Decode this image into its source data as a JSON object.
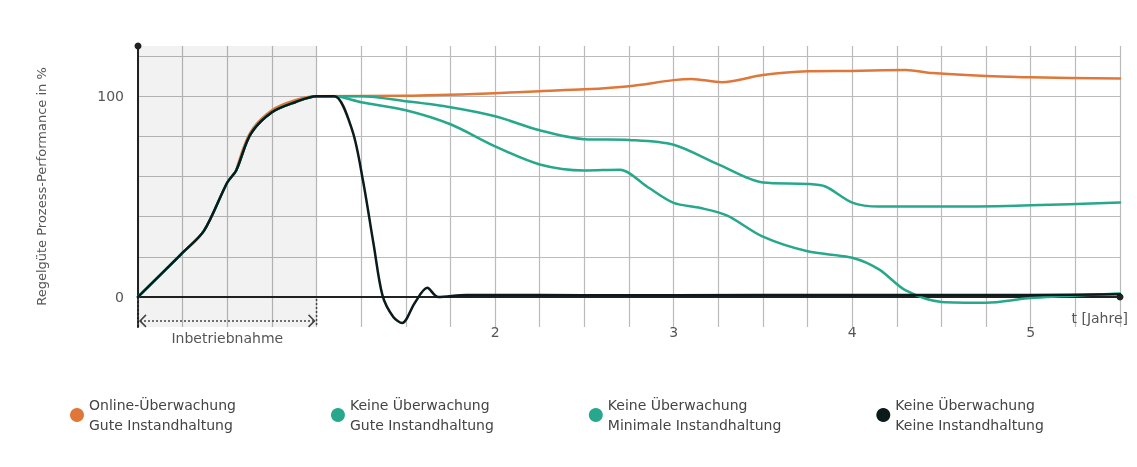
{
  "chart_data": {
    "type": "line",
    "xlabel": "t [Jahre]",
    "ylabel": "Regelgüte Prozess-Performance in %",
    "xlim": [
      0,
      5.5
    ],
    "ylim": [
      -15,
      125
    ],
    "xticks": [
      {
        "value": 0,
        "label": null
      },
      {
        "value": 0.25,
        "label": null
      },
      {
        "value": 0.5,
        "label": null
      },
      {
        "value": 0.75,
        "label": null
      },
      {
        "value": 1,
        "label": null
      },
      {
        "value": 1.25,
        "label": null
      },
      {
        "value": 1.5,
        "label": null
      },
      {
        "value": 1.75,
        "label": null
      },
      2,
      {
        "value": 2.25,
        "label": null
      },
      {
        "value": 2.5,
        "label": null
      },
      {
        "value": 2.75,
        "label": null
      },
      3,
      {
        "value": 3.25,
        "label": null
      },
      {
        "value": 3.5,
        "label": null
      },
      {
        "value": 3.75,
        "label": null
      },
      4,
      {
        "value": 4.25,
        "label": null
      },
      {
        "value": 4.5,
        "label": null
      },
      {
        "value": 4.75,
        "label": null
      },
      5,
      {
        "value": 5.25,
        "label": null
      },
      {
        "value": 5.5,
        "label": null
      }
    ],
    "yticks": [
      0,
      {
        "value": 20,
        "label": null
      },
      {
        "value": 40,
        "label": null
      },
      {
        "value": 60,
        "label": null
      },
      {
        "value": 80,
        "label": null
      },
      100,
      {
        "value": 120,
        "label": null
      }
    ],
    "grid": true,
    "legend": "bottom",
    "marker": "none",
    "line_style": "solid",
    "bands": [
      {
        "axis": "x",
        "from": 0,
        "to": 1,
        "label": "Inbetriebnahme"
      }
    ],
    "series": [
      {
        "name": "Online-Überwachung\nGute Instandhaltung",
        "color": "#e0773a",
        "x": [
          0.55,
          0.63,
          0.75,
          0.88,
          1,
          1.5,
          2,
          2.25,
          2.5,
          2.75,
          3,
          3.1,
          3.27,
          3.5,
          3.75,
          4,
          4.3,
          4.45,
          4.75,
          5,
          5.5
        ],
        "values": [
          63,
          82,
          93,
          98,
          100,
          100.2,
          101.5,
          102.5,
          103.4,
          105,
          108,
          108.6,
          107,
          110.5,
          112.4,
          112.6,
          113,
          111.5,
          110,
          109.4,
          108.8
        ]
      },
      {
        "name": "Keine Überwachung\nGute Instandhaltung",
        "color": "#27a88c",
        "x": [
          0,
          0.25,
          0.37,
          0.5,
          0.55,
          0.63,
          0.75,
          0.88,
          1,
          1.25,
          1.5,
          1.75,
          2,
          2.25,
          2.5,
          2.75,
          3,
          3.25,
          3.5,
          3.75,
          3.85,
          4,
          4.15,
          4.5,
          5,
          5.5
        ],
        "values": [
          0,
          22,
          33,
          57,
          63,
          81,
          92,
          97,
          100,
          100,
          97.5,
          94.5,
          90,
          83,
          78.6,
          78.2,
          75.8,
          66,
          57,
          56.3,
          55,
          47,
          45,
          45,
          45.6,
          47
        ]
      },
      {
        "name": "Keine Überwachung\nMinimale Instandhaltung",
        "color": "#27a88c",
        "x": [
          0,
          0.25,
          0.37,
          0.5,
          0.55,
          0.63,
          0.75,
          0.88,
          1,
          1.1,
          1.25,
          1.5,
          1.75,
          2,
          2.25,
          2.5,
          2.7,
          2.85,
          3,
          3.15,
          3.3,
          3.5,
          3.75,
          4,
          4.15,
          4.3,
          4.5,
          4.75,
          5,
          5.5
        ],
        "values": [
          0,
          22,
          33,
          57,
          63,
          81,
          92,
          97,
          100,
          100,
          97,
          93,
          86,
          75,
          66,
          63,
          63.4,
          55,
          46.8,
          44.3,
          40.5,
          30,
          22.7,
          19.5,
          13.7,
          3.2,
          -2.5,
          -2.9,
          -0.6,
          1.7
        ]
      },
      {
        "name": "Keine Überwachung\nKeine Instandhaltung",
        "color": "#0b1a1a",
        "x": [
          0,
          0.25,
          0.37,
          0.5,
          0.55,
          0.63,
          0.75,
          0.88,
          1,
          1.1,
          1.2,
          1.26,
          1.32,
          1.37,
          1.43,
          1.48,
          1.55,
          1.62,
          1.68,
          1.84,
          2,
          2.5,
          3,
          4,
          5,
          5.5
        ],
        "values": [
          0,
          22,
          33,
          57,
          63,
          81,
          92,
          97,
          100,
          100,
          83,
          58,
          26,
          0.5,
          -10,
          -13,
          -3,
          4.5,
          0,
          1,
          1,
          0.8,
          0.8,
          1,
          1,
          1.3
        ]
      }
    ]
  }
}
